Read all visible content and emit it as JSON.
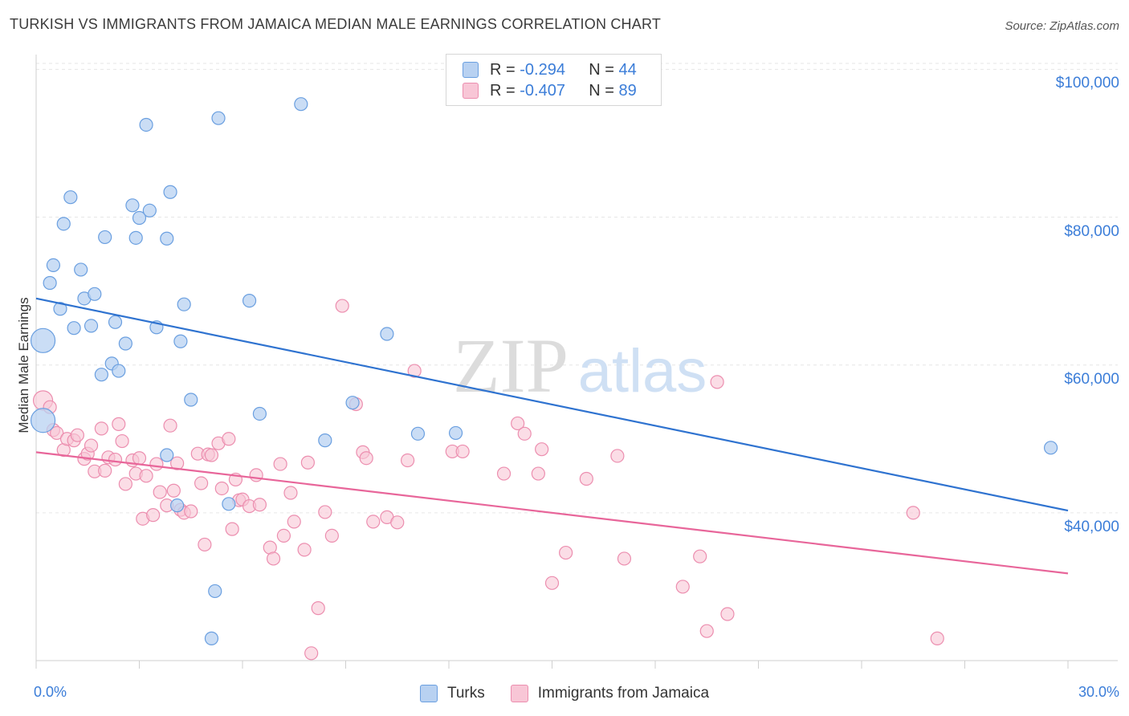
{
  "title": "TURKISH VS IMMIGRANTS FROM JAMAICA MEDIAN MALE EARNINGS CORRELATION CHART",
  "source": "Source: ZipAtlas.com",
  "watermark": {
    "zip": "ZIP",
    "atlas": "atlas"
  },
  "legend": {
    "r_label": "R =",
    "n_label": "N =",
    "items": [
      {
        "r": "-0.294",
        "n": "44"
      },
      {
        "r": "-0.407",
        "n": "89"
      }
    ]
  },
  "colors": {
    "blue_fill": "#b8d1f1",
    "blue_stroke": "#6a9fe0",
    "blue_line": "#2f73d0",
    "pink_fill": "#f8c6d6",
    "pink_stroke": "#ec8eaf",
    "pink_line": "#e8669a",
    "axis_text": "#3b7dd8"
  },
  "chart_data": {
    "type": "scatter",
    "title": "TURKISH VS IMMIGRANTS FROM JAMAICA MEDIAN MALE EARNINGS CORRELATION CHART",
    "xlabel": "",
    "ylabel": "Median Male Earnings",
    "xlim": [
      0,
      30
    ],
    "ylim": [
      20000,
      102000
    ],
    "x_tick_labels": [
      "0.0%",
      "30.0%"
    ],
    "y_ticks": [
      40000,
      60000,
      80000,
      100000
    ],
    "y_tick_labels": [
      "$40,000",
      "$60,000",
      "$80,000",
      "$100,000"
    ],
    "grid": true,
    "legend_position": "top-center",
    "series": [
      {
        "name": "Turks",
        "r": -0.294,
        "n": 44,
        "trend": [
          [
            0,
            69000
          ],
          [
            30,
            40300
          ]
        ],
        "points": [
          [
            0.2,
            52500
          ],
          [
            0.2,
            63300
          ],
          [
            0.4,
            71100
          ],
          [
            0.5,
            73500
          ],
          [
            0.7,
            67600
          ],
          [
            0.8,
            79100
          ],
          [
            1.0,
            82700
          ],
          [
            1.1,
            65000
          ],
          [
            1.3,
            72900
          ],
          [
            1.4,
            69000
          ],
          [
            1.6,
            65300
          ],
          [
            1.7,
            69600
          ],
          [
            1.9,
            58700
          ],
          [
            2.0,
            77300
          ],
          [
            2.2,
            60200
          ],
          [
            2.3,
            65800
          ],
          [
            2.4,
            59200
          ],
          [
            2.6,
            62900
          ],
          [
            2.8,
            81600
          ],
          [
            2.9,
            77200
          ],
          [
            3.0,
            79900
          ],
          [
            3.2,
            92500
          ],
          [
            3.3,
            80900
          ],
          [
            3.5,
            65100
          ],
          [
            3.8,
            47800
          ],
          [
            3.8,
            77100
          ],
          [
            3.9,
            83400
          ],
          [
            4.1,
            41000
          ],
          [
            4.2,
            63200
          ],
          [
            4.3,
            68200
          ],
          [
            4.5,
            55300
          ],
          [
            5.1,
            23000
          ],
          [
            5.2,
            29400
          ],
          [
            5.3,
            93400
          ],
          [
            5.6,
            41200
          ],
          [
            6.2,
            68700
          ],
          [
            6.5,
            53400
          ],
          [
            7.7,
            95300
          ],
          [
            8.4,
            49800
          ],
          [
            9.2,
            54900
          ],
          [
            10.2,
            64200
          ],
          [
            11.1,
            50700
          ],
          [
            12.2,
            50800
          ],
          [
            29.5,
            48800
          ]
        ]
      },
      {
        "name": "Immigrants from Jamaica",
        "r": -0.407,
        "n": 89,
        "trend": [
          [
            0,
            48200
          ],
          [
            30,
            31800
          ]
        ],
        "points": [
          [
            0.2,
            55200
          ],
          [
            0.4,
            54300
          ],
          [
            0.5,
            51200
          ],
          [
            0.6,
            50800
          ],
          [
            0.8,
            48500
          ],
          [
            0.9,
            50000
          ],
          [
            1.1,
            49800
          ],
          [
            1.2,
            50500
          ],
          [
            1.4,
            47300
          ],
          [
            1.5,
            48000
          ],
          [
            1.6,
            49100
          ],
          [
            1.7,
            45600
          ],
          [
            1.9,
            51400
          ],
          [
            2.0,
            45700
          ],
          [
            2.1,
            47500
          ],
          [
            2.3,
            47200
          ],
          [
            2.4,
            52000
          ],
          [
            2.5,
            49700
          ],
          [
            2.6,
            43900
          ],
          [
            2.8,
            47100
          ],
          [
            2.9,
            45300
          ],
          [
            3.0,
            47400
          ],
          [
            3.1,
            39200
          ],
          [
            3.2,
            45000
          ],
          [
            3.4,
            39700
          ],
          [
            3.5,
            46600
          ],
          [
            3.6,
            42800
          ],
          [
            3.8,
            41000
          ],
          [
            3.9,
            51800
          ],
          [
            4.0,
            43000
          ],
          [
            4.1,
            46700
          ],
          [
            4.2,
            40400
          ],
          [
            4.3,
            40000
          ],
          [
            4.5,
            40200
          ],
          [
            4.7,
            48000
          ],
          [
            4.8,
            44000
          ],
          [
            4.9,
            35700
          ],
          [
            5.0,
            47900
          ],
          [
            5.1,
            47800
          ],
          [
            5.3,
            49400
          ],
          [
            5.4,
            43300
          ],
          [
            5.6,
            50000
          ],
          [
            5.7,
            37800
          ],
          [
            5.8,
            44500
          ],
          [
            5.9,
            41700
          ],
          [
            6.0,
            41800
          ],
          [
            6.2,
            40900
          ],
          [
            6.4,
            45100
          ],
          [
            6.5,
            41100
          ],
          [
            6.8,
            35300
          ],
          [
            6.9,
            33800
          ],
          [
            7.1,
            46600
          ],
          [
            7.2,
            36900
          ],
          [
            7.4,
            42700
          ],
          [
            7.5,
            38800
          ],
          [
            7.8,
            35000
          ],
          [
            7.9,
            46800
          ],
          [
            8.0,
            21000
          ],
          [
            8.2,
            27100
          ],
          [
            8.4,
            40100
          ],
          [
            8.6,
            36900
          ],
          [
            8.9,
            68000
          ],
          [
            9.3,
            54700
          ],
          [
            9.5,
            48200
          ],
          [
            9.6,
            47400
          ],
          [
            9.8,
            38800
          ],
          [
            10.2,
            39400
          ],
          [
            10.5,
            38700
          ],
          [
            10.8,
            47100
          ],
          [
            11.0,
            59200
          ],
          [
            12.1,
            48300
          ],
          [
            12.4,
            48300
          ],
          [
            13.6,
            45300
          ],
          [
            14.0,
            52100
          ],
          [
            14.2,
            50700
          ],
          [
            14.6,
            45300
          ],
          [
            14.7,
            48600
          ],
          [
            15.0,
            30500
          ],
          [
            15.4,
            34600
          ],
          [
            16.0,
            44600
          ],
          [
            16.9,
            47700
          ],
          [
            17.1,
            33800
          ],
          [
            18.8,
            30000
          ],
          [
            19.3,
            34100
          ],
          [
            19.5,
            24000
          ],
          [
            19.8,
            57700
          ],
          [
            20.1,
            26300
          ],
          [
            25.5,
            40000
          ],
          [
            26.2,
            23000
          ]
        ]
      }
    ]
  }
}
